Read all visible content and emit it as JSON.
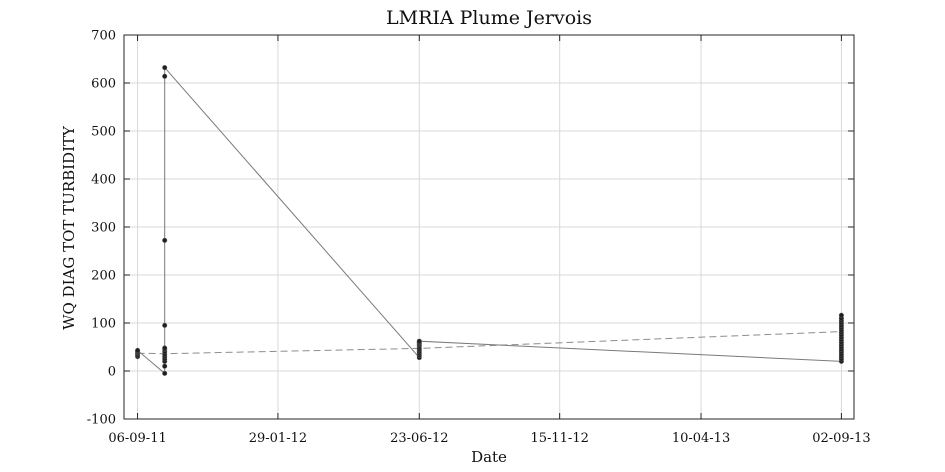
{
  "chart_data": {
    "type": "scatter",
    "title": "LMRIA Plume Jervois",
    "xlabel": "Date",
    "ylabel": "WQ DIAG TOT TURBIDITY",
    "xlim": [
      "2011-08-23",
      "2013-09-15"
    ],
    "ylim": [
      -100,
      700
    ],
    "x_ticks": [
      "2011-09-06",
      "2012-01-29",
      "2012-06-23",
      "2012-11-15",
      "2013-04-10",
      "2013-09-02"
    ],
    "x_tick_labels": [
      "06-09-11",
      "29-01-12",
      "23-06-12",
      "15-11-12",
      "10-04-13",
      "02-09-13"
    ],
    "y_ticks": [
      -100,
      0,
      100,
      200,
      300,
      400,
      500,
      600,
      700
    ],
    "y_tick_labels": [
      "-100",
      "0",
      "100",
      "200",
      "300",
      "400",
      "500",
      "600",
      "700"
    ],
    "grid": true,
    "series": [
      {
        "x": [
          "2011-09-06",
          "2011-09-06",
          "2011-09-06",
          "2011-09-06",
          "2011-09-06",
          "2011-09-06",
          "2011-10-04",
          "2011-10-04",
          "2011-10-04",
          "2011-10-04",
          "2011-10-04",
          "2011-10-04",
          "2011-10-04",
          "2011-10-04",
          "2011-10-04",
          "2011-10-04",
          "2011-10-04",
          "2011-10-04",
          "2011-10-04",
          "2012-06-23",
          "2012-06-23",
          "2012-06-23",
          "2012-06-23",
          "2012-06-23",
          "2012-06-23",
          "2012-06-23",
          "2012-06-23",
          "2012-06-23",
          "2012-06-23",
          "2012-06-23",
          "2013-09-02",
          "2013-09-02",
          "2013-09-02",
          "2013-09-02",
          "2013-09-02",
          "2013-09-02",
          "2013-09-02",
          "2013-09-02",
          "2013-09-02",
          "2013-09-02",
          "2013-09-02",
          "2013-09-02",
          "2013-09-02",
          "2013-09-02",
          "2013-09-02",
          "2013-09-02",
          "2013-09-02",
          "2013-09-02",
          "2013-09-02",
          "2013-09-02"
        ],
        "y": [
          30,
          33,
          36,
          39,
          41,
          43,
          -5,
          10,
          20,
          25,
          30,
          35,
          40,
          45,
          48,
          95,
          272,
          614,
          632,
          28,
          32,
          36,
          40,
          44,
          48,
          52,
          55,
          58,
          60,
          62,
          20,
          25,
          30,
          35,
          40,
          45,
          50,
          55,
          60,
          65,
          70,
          75,
          80,
          85,
          90,
          95,
          100,
          105,
          110,
          116
        ]
      }
    ],
    "trend": {
      "x": [
        "2011-09-06",
        "2011-10-04",
        "2012-06-23",
        "2013-09-02"
      ],
      "y": [
        37,
        36,
        47,
        82
      ]
    }
  }
}
